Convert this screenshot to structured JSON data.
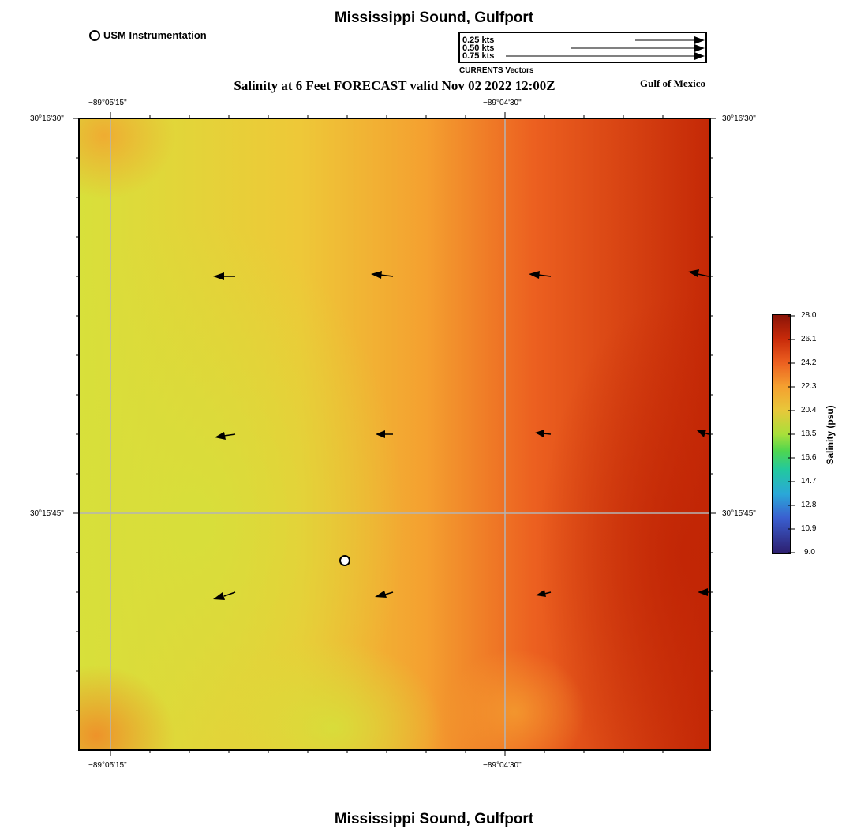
{
  "header": {
    "title": "Mississippi Sound, Gulfport",
    "subtitle": "Salinity at 6 Feet FORECAST valid Nov 02 2022 12:00Z",
    "region": "Gulf of Mexico",
    "station_legend": "USM Instrumentation"
  },
  "vector_legend": {
    "items": [
      "0.25 kts",
      "0.50 kts",
      "0.75 kts"
    ],
    "caption": "CURRENTS Vectors"
  },
  "axes": {
    "lon_ticks": [
      "−89°05'15\"",
      "−89°04'30\""
    ],
    "lat_ticks": [
      "30°16'30\"",
      "30°15'45\""
    ]
  },
  "colorbar": {
    "label": "Salinity (psu)",
    "ticks": [
      "28.0",
      "26.1",
      "24.2",
      "22.3",
      "20.4",
      "18.5",
      "16.6",
      "14.7",
      "12.8",
      "10.9",
      "9.0"
    ],
    "colors": [
      "#2d1e6e",
      "#3a5fd0",
      "#2aa8d8",
      "#22c8a0",
      "#4fd64f",
      "#a8e03a",
      "#e8c83a",
      "#f4a030",
      "#ec6020",
      "#c82a0a",
      "#8a1408"
    ]
  },
  "footer": {
    "title": "Mississippi Sound, Gulfport"
  },
  "colors": {
    "grid": "#b4b4b4",
    "field_low": "#d8e03a",
    "field_mid": "#f4a030",
    "field_high": "#c42806"
  }
}
